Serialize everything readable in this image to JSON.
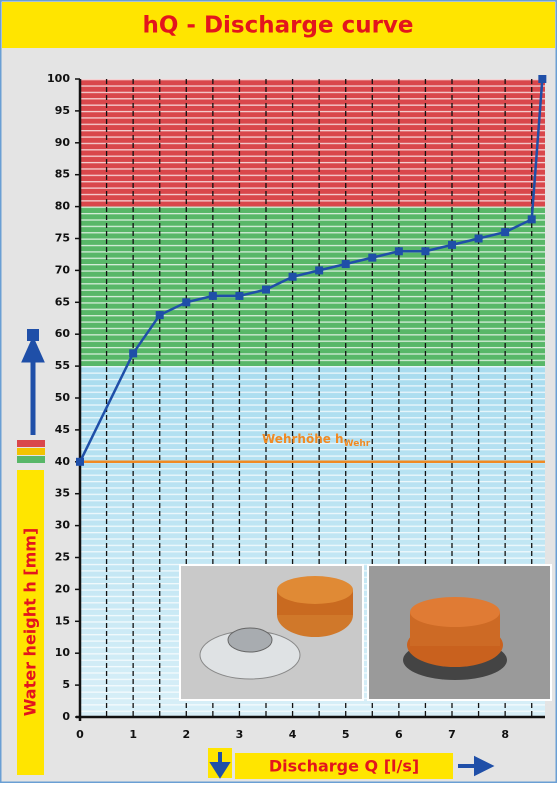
{
  "chart_data": {
    "type": "line",
    "title": "hQ - Discharge curve",
    "x_label": "Discharge Q [l/s]",
    "y_label": "Water height h [mm]",
    "x": [
      0,
      1,
      1.5,
      2,
      2.5,
      3,
      3.5,
      4,
      4.5,
      5,
      5.5,
      6,
      6.5,
      7,
      7.5,
      8,
      8.5,
      8.7
    ],
    "series": [
      {
        "name": "hQ",
        "color": "#1f4fa8",
        "values": [
          40,
          57,
          63,
          65,
          66,
          66,
          67,
          69,
          70,
          71,
          72,
          73,
          73,
          74,
          75,
          76,
          78,
          100
        ]
      }
    ],
    "xlim": [
      0,
      8.75
    ],
    "xticks": [
      0,
      1,
      2,
      3,
      4,
      5,
      6,
      7,
      8
    ],
    "ylim": [
      0,
      100
    ],
    "yticks": [
      0,
      5,
      10,
      15,
      20,
      25,
      30,
      35,
      40,
      45,
      50,
      55,
      60,
      65,
      70,
      75,
      80,
      85,
      90,
      95,
      100
    ],
    "bands": [
      {
        "from": 80,
        "to": 100,
        "color": "#d9474b"
      },
      {
        "from": 55,
        "to": 80,
        "color": "#58b768"
      },
      {
        "from": 0,
        "to": 55,
        "color": "#a9dcef"
      }
    ],
    "reference_line": {
      "value": 40,
      "color": "#f08a24",
      "label": "Wehrhöhe h",
      "label_sub": "Wehr"
    }
  }
}
